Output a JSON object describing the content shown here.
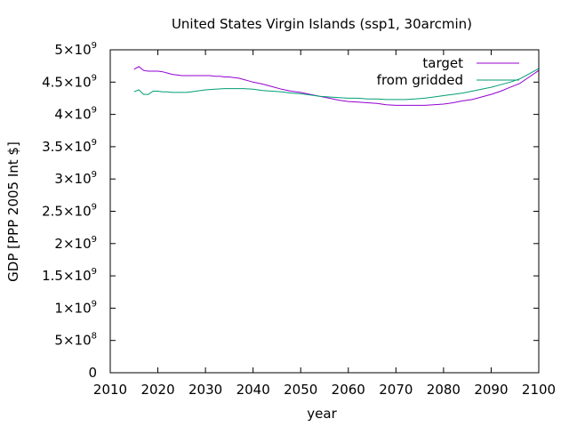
{
  "chart_data": {
    "type": "line",
    "title": "United States Virgin Islands (ssp1, 30arcmin)",
    "xlabel": "year",
    "ylabel": "GDP [PPP 2005 Int $]",
    "xlim": [
      2010,
      2100
    ],
    "ylim": [
      0,
      5000000000
    ],
    "x_ticks": [
      "2010",
      "2020",
      "2030",
      "2040",
      "2050",
      "2060",
      "2070",
      "2080",
      "2090",
      "2100"
    ],
    "y_ticks": [
      {
        "value": 0,
        "mant": "0",
        "exp": ""
      },
      {
        "value": 500000000,
        "mant": "5×10",
        "exp": "8"
      },
      {
        "value": 1000000000,
        "mant": "1×10",
        "exp": "9"
      },
      {
        "value": 1500000000,
        "mant": "1.5×10",
        "exp": "9"
      },
      {
        "value": 2000000000,
        "mant": "2×10",
        "exp": "9"
      },
      {
        "value": 2500000000,
        "mant": "2.5×10",
        "exp": "9"
      },
      {
        "value": 3000000000,
        "mant": "3×10",
        "exp": "9"
      },
      {
        "value": 3500000000,
        "mant": "3.5×10",
        "exp": "9"
      },
      {
        "value": 4000000000,
        "mant": "4×10",
        "exp": "9"
      },
      {
        "value": 4500000000,
        "mant": "4.5×10",
        "exp": "9"
      },
      {
        "value": 5000000000,
        "mant": "5×10",
        "exp": "9"
      }
    ],
    "legend_position": "top-right",
    "grid": false,
    "series": [
      {
        "name": "target",
        "color": "#9400d3",
        "x": [
          2015,
          2016,
          2017,
          2018,
          2019,
          2020,
          2021,
          2022,
          2023,
          2024,
          2025,
          2026,
          2027,
          2028,
          2029,
          2030,
          2031,
          2032,
          2033,
          2034,
          2035,
          2036,
          2037,
          2038,
          2039,
          2040,
          2042,
          2044,
          2046,
          2048,
          2050,
          2052,
          2054,
          2056,
          2058,
          2060,
          2062,
          2064,
          2066,
          2068,
          2070,
          2072,
          2074,
          2076,
          2078,
          2080,
          2082,
          2084,
          2086,
          2088,
          2090,
          2092,
          2094,
          2096,
          2098,
          2100
        ],
        "y": [
          4700000000.0,
          4740000000.0,
          4680000000.0,
          4670000000.0,
          4670000000.0,
          4670000000.0,
          4660000000.0,
          4640000000.0,
          4620000000.0,
          4610000000.0,
          4600000000.0,
          4600000000.0,
          4600000000.0,
          4600000000.0,
          4600000000.0,
          4600000000.0,
          4600000000.0,
          4590000000.0,
          4590000000.0,
          4580000000.0,
          4580000000.0,
          4570000000.0,
          4560000000.0,
          4540000000.0,
          4520000000.0,
          4500000000.0,
          4470000000.0,
          4430000000.0,
          4390000000.0,
          4360000000.0,
          4340000000.0,
          4310000000.0,
          4280000000.0,
          4250000000.0,
          4220000000.0,
          4200000000.0,
          4190000000.0,
          4180000000.0,
          4170000000.0,
          4150000000.0,
          4140000000.0,
          4140000000.0,
          4140000000.0,
          4140000000.0,
          4150000000.0,
          4160000000.0,
          4180000000.0,
          4210000000.0,
          4230000000.0,
          4270000000.0,
          4310000000.0,
          4360000000.0,
          4420000000.0,
          4480000000.0,
          4580000000.0,
          4680000000.0
        ]
      },
      {
        "name": "from gridded",
        "color": "#009e73",
        "x": [
          2015,
          2016,
          2017,
          2018,
          2019,
          2020,
          2021,
          2022,
          2023,
          2024,
          2025,
          2026,
          2027,
          2028,
          2029,
          2030,
          2032,
          2034,
          2036,
          2038,
          2040,
          2042,
          2044,
          2046,
          2048,
          2050,
          2052,
          2054,
          2056,
          2058,
          2060,
          2062,
          2064,
          2066,
          2068,
          2070,
          2072,
          2074,
          2076,
          2078,
          2080,
          2082,
          2084,
          2086,
          2088,
          2090,
          2092,
          2094,
          2096,
          2098,
          2100
        ],
        "y": [
          4350000000.0,
          4380000000.0,
          4310000000.0,
          4310000000.0,
          4360000000.0,
          4360000000.0,
          4350000000.0,
          4350000000.0,
          4340000000.0,
          4340000000.0,
          4340000000.0,
          4340000000.0,
          4350000000.0,
          4360000000.0,
          4370000000.0,
          4380000000.0,
          4390000000.0,
          4400000000.0,
          4400000000.0,
          4400000000.0,
          4390000000.0,
          4370000000.0,
          4360000000.0,
          4350000000.0,
          4330000000.0,
          4320000000.0,
          4300000000.0,
          4280000000.0,
          4270000000.0,
          4260000000.0,
          4250000000.0,
          4250000000.0,
          4240000000.0,
          4240000000.0,
          4230000000.0,
          4230000000.0,
          4230000000.0,
          4240000000.0,
          4250000000.0,
          4270000000.0,
          4290000000.0,
          4310000000.0,
          4330000000.0,
          4360000000.0,
          4390000000.0,
          4420000000.0,
          4460000000.0,
          4500000000.0,
          4550000000.0,
          4630000000.0,
          4710000000.0
        ]
      }
    ]
  }
}
